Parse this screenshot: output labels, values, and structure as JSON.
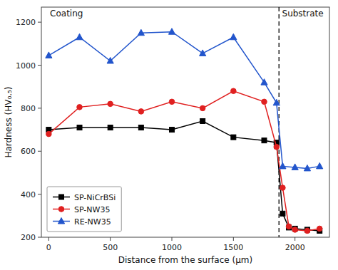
{
  "chart_data": {
    "type": "line",
    "xlabel": "Distance from the surface (μm)",
    "ylabel": "Hardness (HV₀.₅)",
    "xlim": [
      -60,
      2280
    ],
    "ylim": [
      200,
      1270
    ],
    "xticks": [
      0,
      500,
      1000,
      1500,
      2000
    ],
    "yticks": [
      200,
      400,
      600,
      800,
      1000,
      1200
    ],
    "grid": false,
    "legend": "lower left",
    "series": [
      {
        "name": "SP-NiCrBSi",
        "color": "#000000",
        "marker": "square",
        "x": [
          0,
          250,
          500,
          750,
          1000,
          1250,
          1500,
          1750,
          1850,
          1900,
          1950,
          2000,
          2100,
          2200
        ],
        "values": [
          700,
          710,
          710,
          710,
          700,
          740,
          665,
          650,
          640,
          310,
          245,
          240,
          235,
          230
        ]
      },
      {
        "name": "SP-NW35",
        "color": "#e02020",
        "marker": "circle",
        "x": [
          0,
          250,
          500,
          750,
          1000,
          1250,
          1500,
          1750,
          1850,
          1900,
          1950,
          2000,
          2100,
          2200
        ],
        "values": [
          680,
          805,
          820,
          785,
          830,
          800,
          880,
          830,
          620,
          430,
          250,
          235,
          230,
          240
        ]
      },
      {
        "name": "RE-NW35",
        "color": "#2255cc",
        "marker": "triangle",
        "x": [
          0,
          250,
          500,
          750,
          1000,
          1250,
          1500,
          1750,
          1850,
          1900,
          2000,
          2100,
          2200
        ],
        "values": [
          1045,
          1130,
          1020,
          1150,
          1155,
          1055,
          1130,
          920,
          825,
          530,
          525,
          520,
          530
        ]
      }
    ],
    "vlines": [
      {
        "x": 1870,
        "color": "#000000",
        "line_style": "dashed"
      }
    ],
    "annotations": [
      {
        "text": "Coating",
        "x": 10,
        "y": 1255
      },
      {
        "text": "Substrate",
        "x": 1895,
        "y": 1255
      }
    ]
  }
}
